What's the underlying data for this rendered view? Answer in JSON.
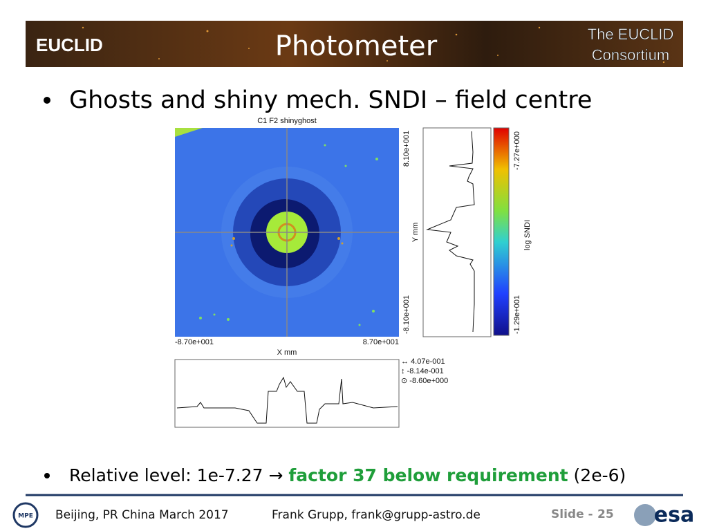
{
  "header": {
    "logo": "EUCLID",
    "title": "Photometer",
    "consortium": [
      "The EUCLID",
      "Consortium"
    ]
  },
  "bullets": [
    {
      "text": "Ghosts and shiny mech. SNDI – field centre"
    },
    {
      "parts": [
        "Relative level: 1e-7.27 → ",
        "factor 37 below requirement",
        " (2e-6)"
      ]
    }
  ],
  "figure": {
    "title": "C1 F2 shinyghost",
    "x_labels": [
      "-8.70e+001",
      "8.70e+001"
    ],
    "x_axis": "X mm",
    "y_labels": [
      "8.10e+001",
      "-8.10e+001"
    ],
    "y_axis": "Y mm",
    "colorbar_labels": [
      "-7.27e+000",
      "-1.29e+001"
    ],
    "colorbar_axis": "log SNDI",
    "legend": [
      "4.07e-001",
      "-8.14e-001",
      "-8.60e+000"
    ]
  },
  "footer": {
    "location": "Beijing, PR China March 2017",
    "author": "Frank Grupp, frank@grupp-astro.de",
    "slide_label": "Slide -",
    "slide_number": "25",
    "left_logo": "MPE",
    "right_logo": "esa"
  }
}
